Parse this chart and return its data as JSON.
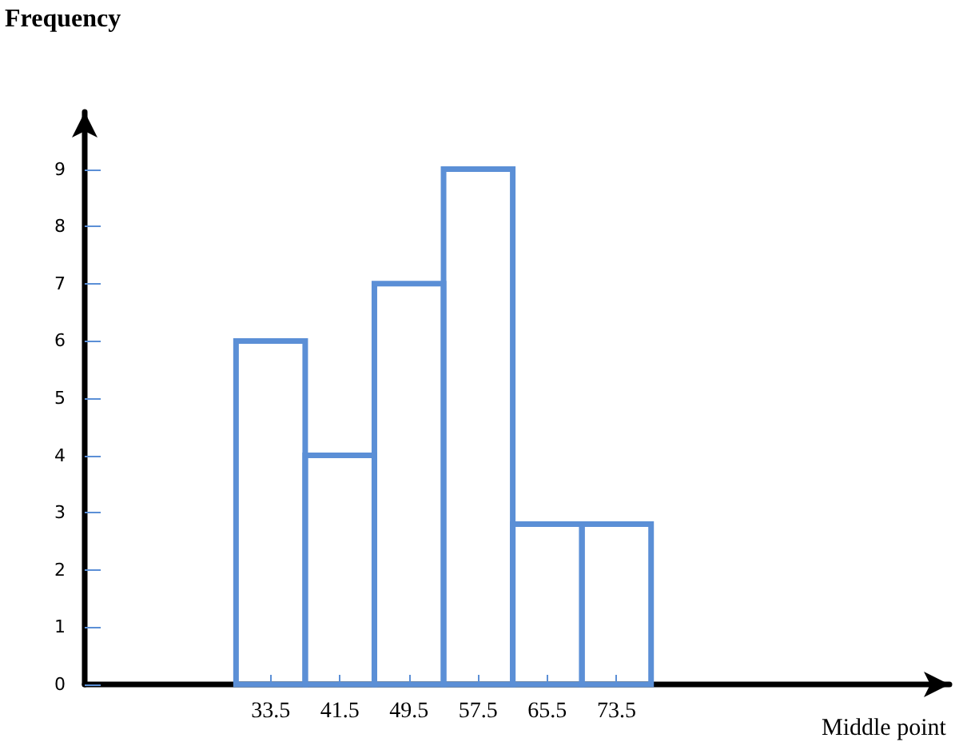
{
  "chart_data": {
    "type": "histogram",
    "ylabel": "Frequency",
    "xlabel": "Middle point",
    "bins": [
      29.5,
      37.5,
      45.5,
      53.5,
      61.5,
      69.5,
      77.5
    ],
    "values": [
      6,
      4,
      7,
      9,
      2.8,
      2.8
    ],
    "color": "#5b8fd6",
    "xlim": [
      12,
      112
    ],
    "xticks": [
      33.5,
      41.5,
      49.5,
      57.5,
      65.5,
      73.5
    ],
    "ylim": [
      0,
      10
    ],
    "yticks": [
      0,
      1,
      2,
      3,
      4,
      5,
      6,
      7,
      8,
      9
    ],
    "grid": false
  }
}
